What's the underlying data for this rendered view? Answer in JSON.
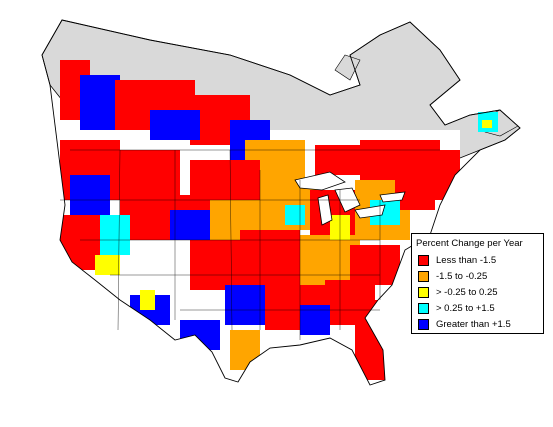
{
  "colors": {
    "land": "#ffffff",
    "canada_no_data": "#d9d9d9",
    "border": "#000000",
    "water": "#ffffff"
  },
  "legend": {
    "title": "Percent Change per Year",
    "items": [
      {
        "label": "Less than -1.5",
        "color": "#ff0000"
      },
      {
        "label": "-1.5 to -0.25",
        "color": "#ffa500"
      },
      {
        "label": "> -0.25 to 0.25",
        "color": "#ffff00"
      },
      {
        "label": "> 0.25 to +1.5",
        "color": "#00ffff"
      },
      {
        "label": "Greater than +1.5",
        "color": "#0000ff"
      }
    ]
  }
}
